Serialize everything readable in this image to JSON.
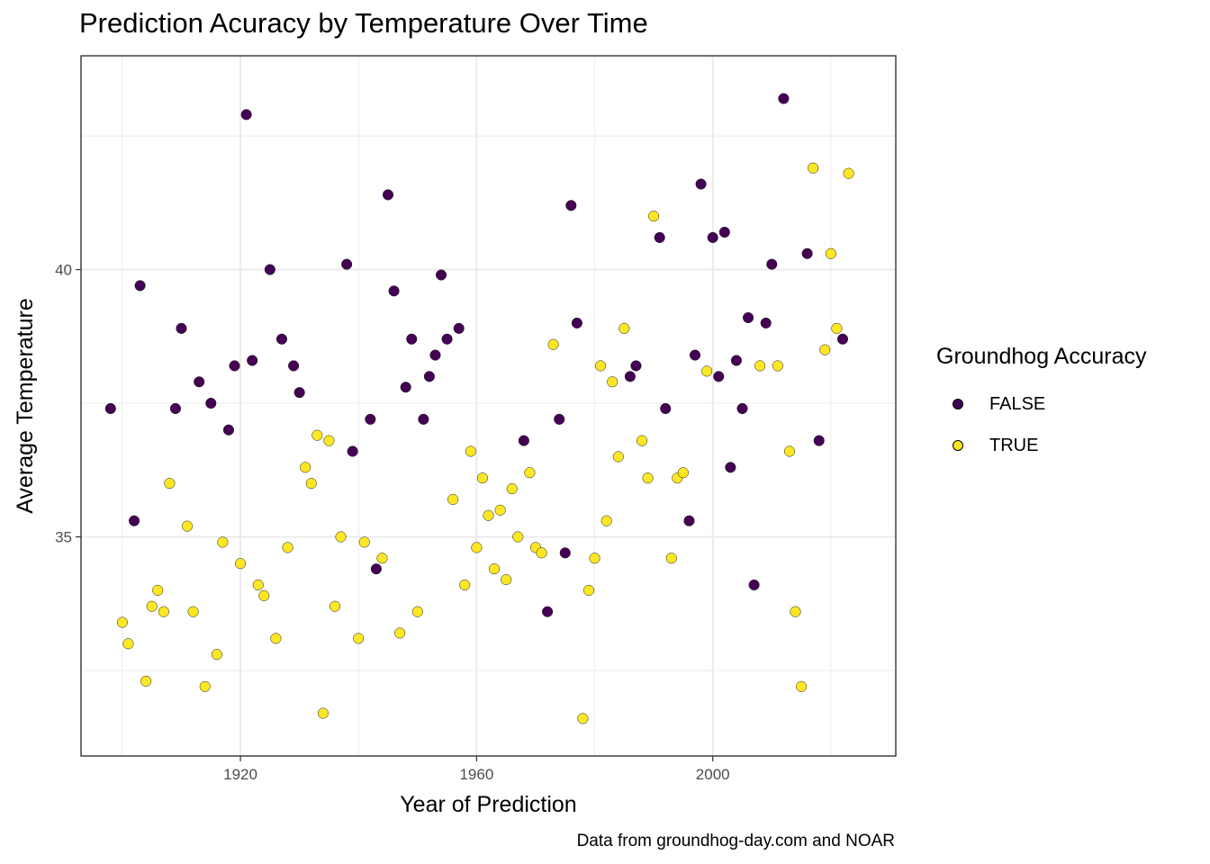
{
  "chart_data": {
    "type": "scatter",
    "title": "Prediction Acuracy by Temperature Over Time",
    "xlabel": "Year of Prediction",
    "ylabel": "Average Temperature",
    "caption": "Data from groundhog-day.com and NOAR",
    "xlim": [
      1893,
      2031
    ],
    "ylim": [
      30.9,
      44.0
    ],
    "x_ticks": [
      1920,
      1960,
      2000
    ],
    "y_ticks": [
      35,
      40
    ],
    "grid": true,
    "legend": {
      "title": "Groundhog Accuracy",
      "position": "right",
      "entries": [
        {
          "label": "FALSE",
          "color": "#440154"
        },
        {
          "label": "TRUE",
          "color": "#FDE725"
        }
      ]
    },
    "series": [
      {
        "name": "FALSE",
        "color": "#440154",
        "points": [
          [
            1898,
            37.4
          ],
          [
            1902,
            35.3
          ],
          [
            1903,
            39.7
          ],
          [
            1909,
            37.4
          ],
          [
            1910,
            38.9
          ],
          [
            1913,
            37.9
          ],
          [
            1915,
            37.5
          ],
          [
            1918,
            37.0
          ],
          [
            1919,
            38.2
          ],
          [
            1921,
            42.9
          ],
          [
            1922,
            38.3
          ],
          [
            1925,
            40.0
          ],
          [
            1927,
            38.7
          ],
          [
            1929,
            38.2
          ],
          [
            1930,
            37.7
          ],
          [
            1938,
            40.1
          ],
          [
            1939,
            36.6
          ],
          [
            1942,
            37.2
          ],
          [
            1943,
            34.4
          ],
          [
            1945,
            41.4
          ],
          [
            1946,
            39.6
          ],
          [
            1948,
            37.8
          ],
          [
            1949,
            38.7
          ],
          [
            1951,
            37.2
          ],
          [
            1952,
            38.0
          ],
          [
            1953,
            38.4
          ],
          [
            1954,
            39.9
          ],
          [
            1955,
            38.7
          ],
          [
            1957,
            38.9
          ],
          [
            1968,
            36.8
          ],
          [
            1972,
            33.6
          ],
          [
            1974,
            37.2
          ],
          [
            1975,
            34.7
          ],
          [
            1976,
            41.2
          ],
          [
            1977,
            39.0
          ],
          [
            1986,
            38.0
          ],
          [
            1987,
            38.2
          ],
          [
            1991,
            40.6
          ],
          [
            1992,
            37.4
          ],
          [
            1996,
            35.3
          ],
          [
            1997,
            38.4
          ],
          [
            1998,
            41.6
          ],
          [
            2000,
            40.6
          ],
          [
            2001,
            38.0
          ],
          [
            2002,
            40.7
          ],
          [
            2003,
            36.3
          ],
          [
            2004,
            38.3
          ],
          [
            2005,
            37.4
          ],
          [
            2006,
            39.1
          ],
          [
            2007,
            34.1
          ],
          [
            2009,
            39.0
          ],
          [
            2010,
            40.1
          ],
          [
            2012,
            43.2
          ],
          [
            2016,
            40.3
          ],
          [
            2018,
            36.8
          ],
          [
            2022,
            38.7
          ]
        ]
      },
      {
        "name": "TRUE",
        "color": "#FDE725",
        "points": [
          [
            1900,
            33.4
          ],
          [
            1901,
            33.0
          ],
          [
            1904,
            32.3
          ],
          [
            1905,
            33.7
          ],
          [
            1906,
            34.0
          ],
          [
            1907,
            33.6
          ],
          [
            1908,
            36.0
          ],
          [
            1911,
            35.2
          ],
          [
            1912,
            33.6
          ],
          [
            1914,
            32.2
          ],
          [
            1916,
            32.8
          ],
          [
            1917,
            34.9
          ],
          [
            1920,
            34.5
          ],
          [
            1923,
            34.1
          ],
          [
            1924,
            33.9
          ],
          [
            1926,
            33.1
          ],
          [
            1928,
            34.8
          ],
          [
            1931,
            36.3
          ],
          [
            1932,
            36.0
          ],
          [
            1933,
            36.9
          ],
          [
            1934,
            31.7
          ],
          [
            1935,
            36.8
          ],
          [
            1936,
            33.7
          ],
          [
            1937,
            35.0
          ],
          [
            1940,
            33.1
          ],
          [
            1941,
            34.9
          ],
          [
            1944,
            34.6
          ],
          [
            1947,
            33.2
          ],
          [
            1950,
            33.6
          ],
          [
            1956,
            35.7
          ],
          [
            1958,
            34.1
          ],
          [
            1959,
            36.6
          ],
          [
            1960,
            34.8
          ],
          [
            1961,
            36.1
          ],
          [
            1962,
            35.4
          ],
          [
            1963,
            34.4
          ],
          [
            1964,
            35.5
          ],
          [
            1965,
            34.2
          ],
          [
            1966,
            35.9
          ],
          [
            1967,
            35.0
          ],
          [
            1969,
            36.2
          ],
          [
            1970,
            34.8
          ],
          [
            1971,
            34.7
          ],
          [
            1973,
            38.6
          ],
          [
            1978,
            31.6
          ],
          [
            1979,
            34.0
          ],
          [
            1980,
            34.6
          ],
          [
            1981,
            38.2
          ],
          [
            1982,
            35.3
          ],
          [
            1983,
            37.9
          ],
          [
            1984,
            36.5
          ],
          [
            1985,
            38.9
          ],
          [
            1988,
            36.8
          ],
          [
            1989,
            36.1
          ],
          [
            1990,
            41.0
          ],
          [
            1993,
            34.6
          ],
          [
            1994,
            36.1
          ],
          [
            1995,
            36.2
          ],
          [
            1999,
            38.1
          ],
          [
            2008,
            38.2
          ],
          [
            2011,
            38.2
          ],
          [
            2013,
            36.6
          ],
          [
            2014,
            33.6
          ],
          [
            2015,
            32.2
          ],
          [
            2017,
            41.9
          ],
          [
            2019,
            38.5
          ],
          [
            2020,
            40.3
          ],
          [
            2021,
            38.9
          ],
          [
            2023,
            41.8
          ]
        ]
      }
    ]
  }
}
